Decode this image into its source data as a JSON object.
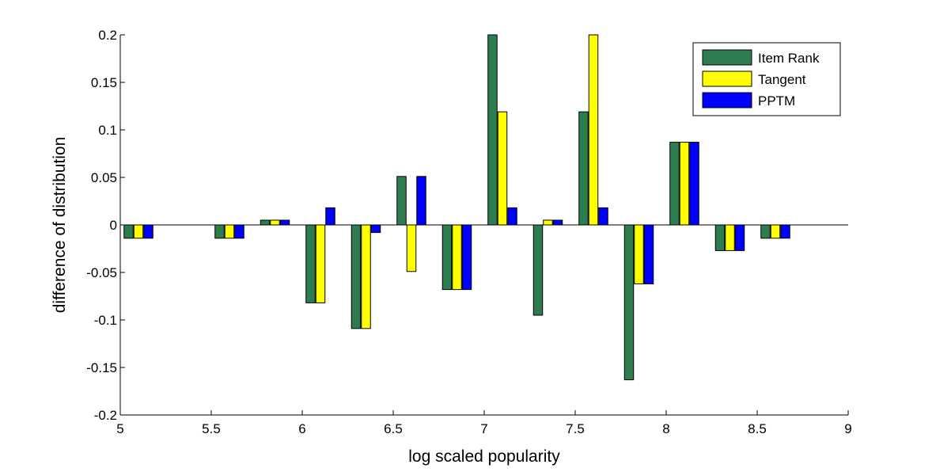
{
  "colors": {
    "background": "#ffffff",
    "axis": "#000000",
    "series": [
      "#2e7d50",
      "#ffff00",
      "#0000ff"
    ]
  },
  "chart_data": {
    "type": "bar",
    "title": "",
    "xlabel": "log scaled popularity",
    "ylabel": "difference of distribution",
    "xlim": [
      5,
      9
    ],
    "ylim": [
      -0.2,
      0.2
    ],
    "xticks": [
      "5",
      "5.5",
      "6",
      "6.5",
      "7",
      "7.5",
      "8",
      "8.5",
      "9"
    ],
    "yticks": [
      "-0.2",
      "-0.15",
      "-0.1",
      "-0.05",
      "0",
      "0.05",
      "0.1",
      "0.15",
      "0.2"
    ],
    "grid": false,
    "legend_position": "top-right",
    "x": [
      5.1,
      5.6,
      5.85,
      6.1,
      6.35,
      6.6,
      6.85,
      7.1,
      7.35,
      7.6,
      7.85,
      8.1,
      8.35,
      8.6
    ],
    "series": [
      {
        "name": "Item Rank",
        "values": [
          -0.014,
          -0.014,
          0.005,
          -0.082,
          -0.109,
          0.051,
          -0.068,
          0.2,
          -0.095,
          0.119,
          -0.163,
          0.087,
          -0.027,
          -0.014
        ]
      },
      {
        "name": "Tangent",
        "values": [
          -0.014,
          -0.014,
          0.005,
          -0.082,
          -0.109,
          -0.049,
          -0.068,
          0.119,
          0.005,
          0.2,
          -0.062,
          0.087,
          -0.027,
          -0.014
        ]
      },
      {
        "name": "PPTM",
        "values": [
          -0.014,
          -0.014,
          0.005,
          0.018,
          -0.008,
          0.051,
          -0.068,
          0.018,
          0.005,
          0.018,
          -0.062,
          0.087,
          -0.027,
          -0.014
        ]
      }
    ]
  }
}
